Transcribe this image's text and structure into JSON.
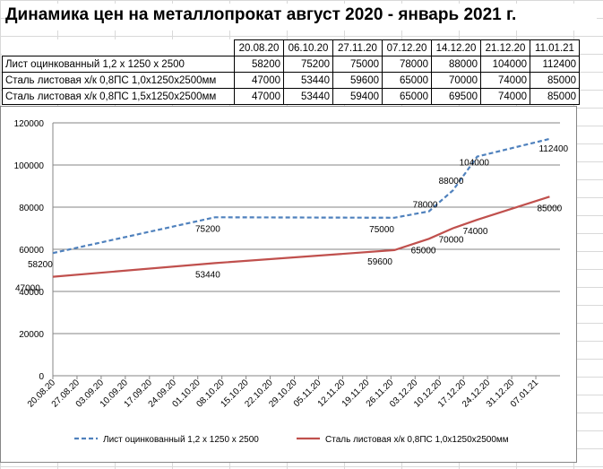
{
  "page": {
    "title": "Динамика цен на металлопрокат август 2020 - январь 2021 г."
  },
  "table": {
    "dates": [
      "20.08.20",
      "06.10.20",
      "27.11.20",
      "07.12.20",
      "14.12.20",
      "21.12.20",
      "11.01.21"
    ],
    "rows": [
      {
        "label": "Лист оцинкованный 1,2 х 1250 х 2500",
        "values": [
          "58200",
          "75200",
          "75000",
          "78000",
          "88000",
          "104000",
          "112400"
        ]
      },
      {
        "label": "Сталь листовая х/к 0,8ПС 1,0х1250х2500мм",
        "values": [
          "47000",
          "53440",
          "59600",
          "65000",
          "70000",
          "74000",
          "85000"
        ]
      },
      {
        "label": "Сталь листовая х/к 0,8ПС 1,5х1250х2500мм",
        "values": [
          "47000",
          "53440",
          "59400",
          "65000",
          "69500",
          "74000",
          "85000"
        ]
      }
    ]
  },
  "chart_data": {
    "type": "line",
    "x_type": "date",
    "xlim": [
      "2020-08-20",
      "2021-01-14"
    ],
    "ylim": [
      0,
      120000
    ],
    "yticks": [
      0,
      20000,
      40000,
      60000,
      80000,
      100000,
      120000
    ],
    "xtick_labels": [
      "20.08.20",
      "27.08.20",
      "03.09.20",
      "10.09.20",
      "17.09.20",
      "24.09.20",
      "01.10.20",
      "08.10.20",
      "15.10.20",
      "22.10.20",
      "29.10.20",
      "05.11.20",
      "12.11.20",
      "19.11.20",
      "26.11.20",
      "03.12.20",
      "10.12.20",
      "17.12.20",
      "24.12.20",
      "31.12.20",
      "07.01.21"
    ],
    "grid": "horizontal",
    "legend_position": "bottom",
    "series": [
      {
        "name": "Лист оцинкованный  1,2 х 1250 х 2500",
        "color": "#4f81bd",
        "style": "dashed",
        "x": [
          "2020-08-20",
          "2020-10-06",
          "2020-11-27",
          "2020-12-07",
          "2020-12-14",
          "2020-12-21",
          "2021-01-11"
        ],
        "y": [
          58200,
          75200,
          75000,
          78000,
          88000,
          104000,
          112400
        ],
        "labels": [
          "58200",
          "75200",
          "75000",
          "78000",
          "88000",
          "104000",
          "112400"
        ]
      },
      {
        "name": "Сталь листовая  х/к 0,8ПС 1,0х1250х2500мм",
        "color": "#c0504d",
        "style": "solid",
        "x": [
          "2020-08-20",
          "2020-10-06",
          "2020-11-27",
          "2020-12-07",
          "2020-12-14",
          "2020-12-21",
          "2021-01-11"
        ],
        "y": [
          47000,
          53440,
          59600,
          65000,
          70000,
          74000,
          85000
        ],
        "labels": [
          "47000",
          "53440",
          "59600",
          "65000",
          "70000",
          "74000",
          "85000"
        ]
      }
    ]
  }
}
